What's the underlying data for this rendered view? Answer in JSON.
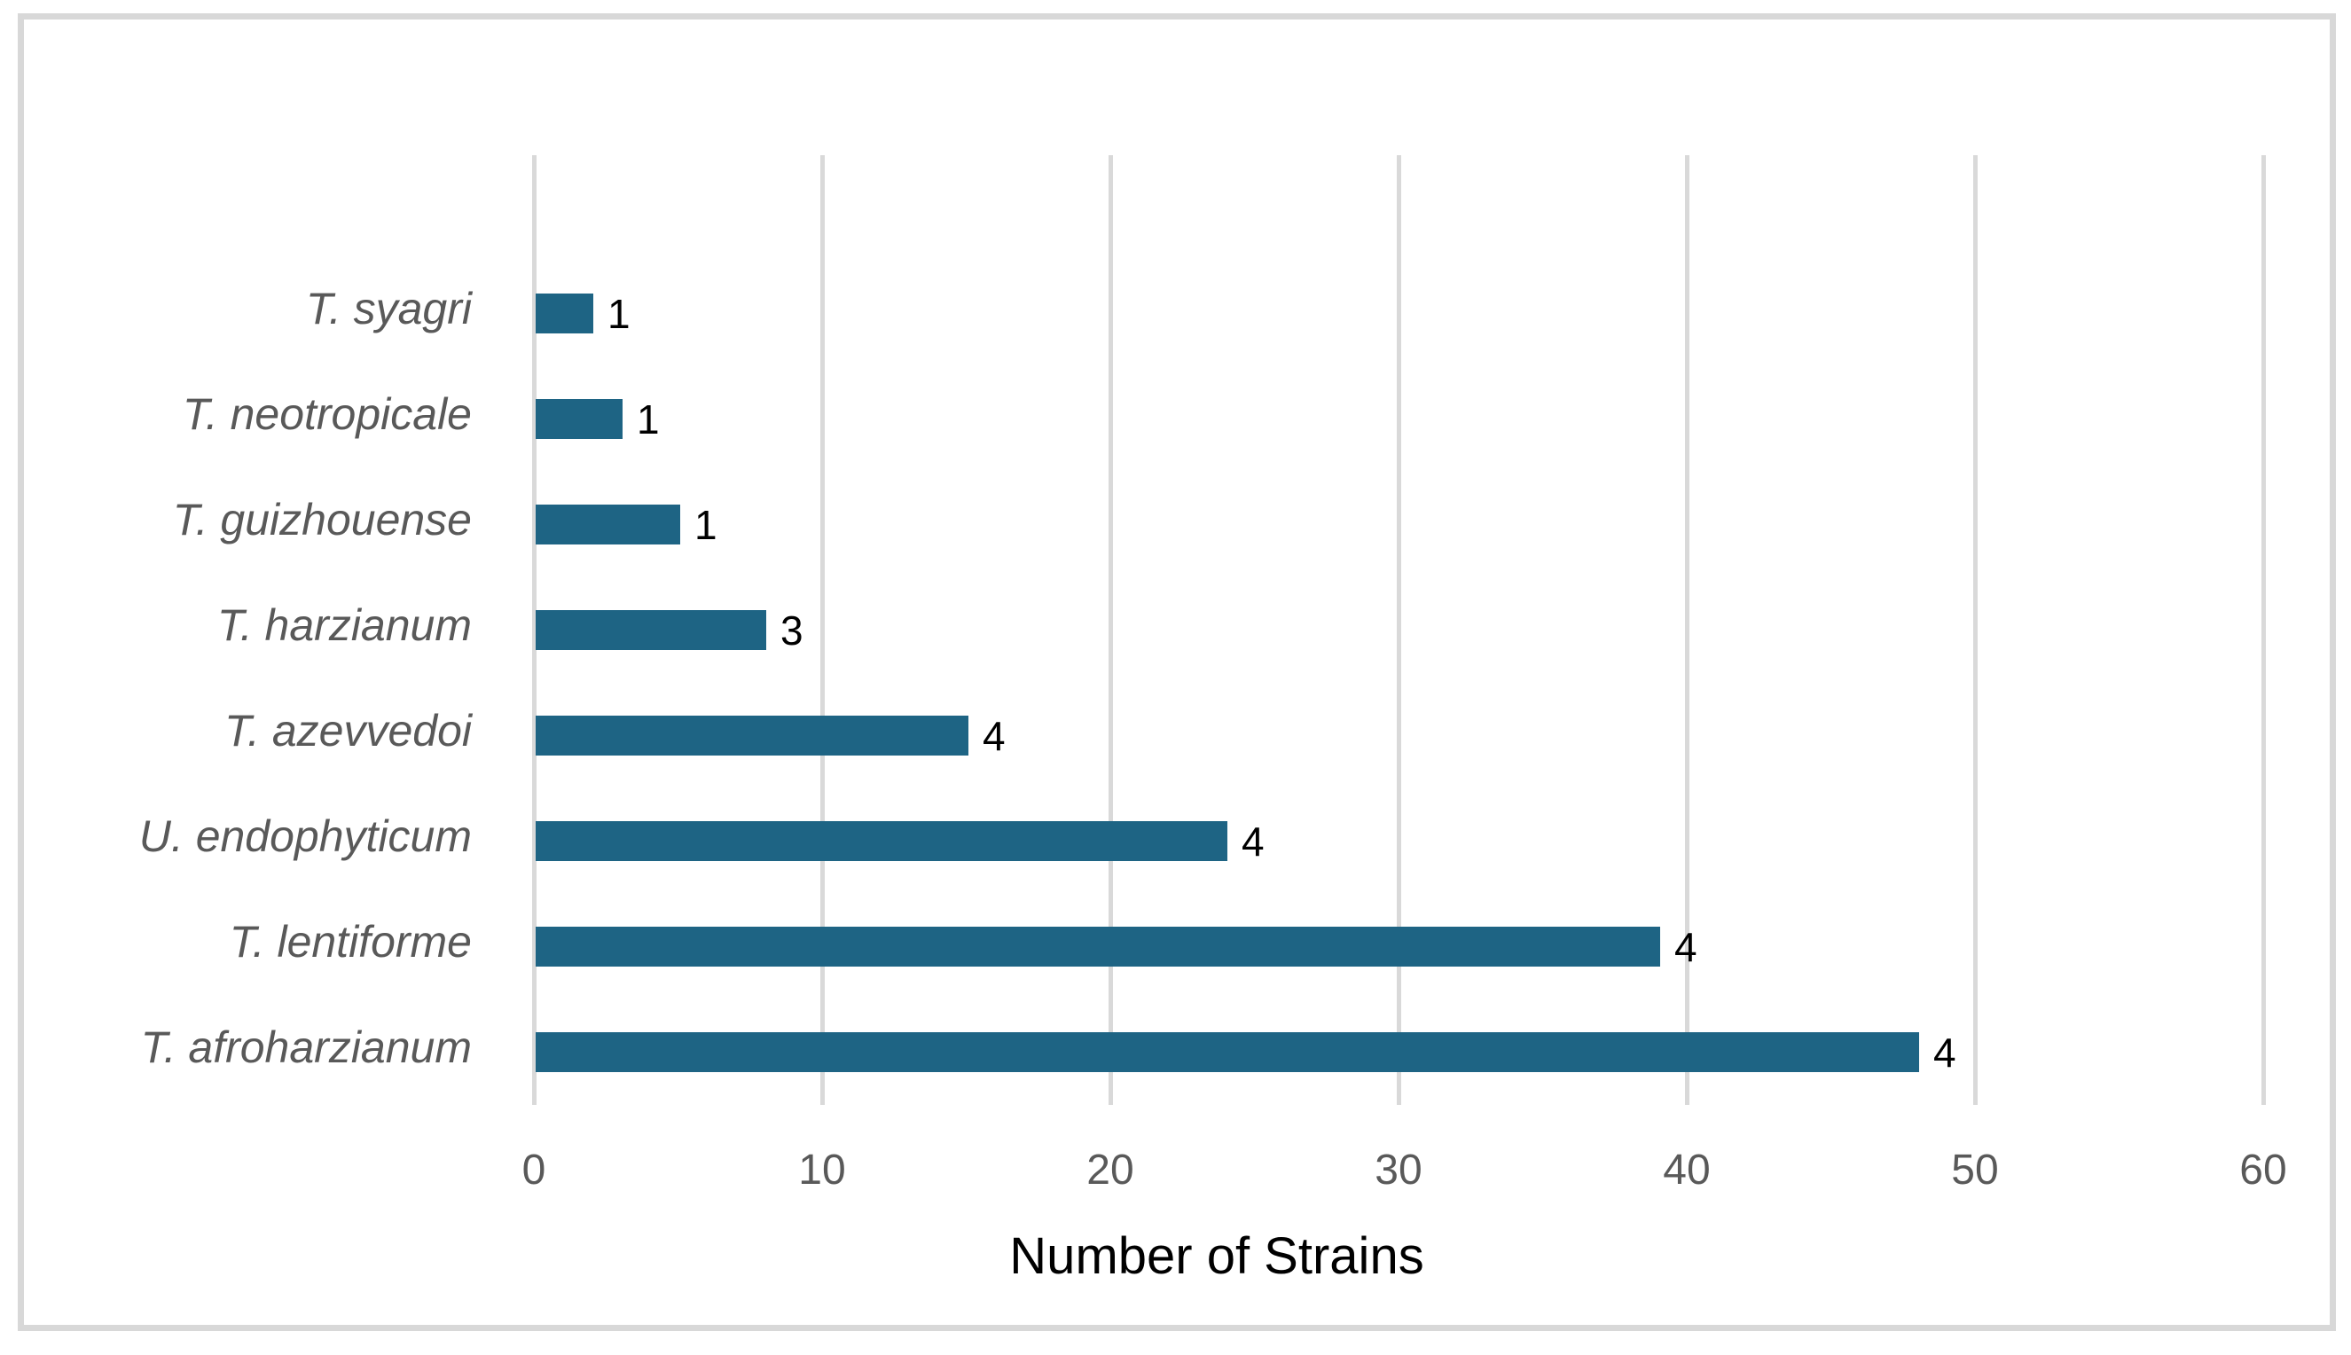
{
  "figure": {
    "background_color": "#ffffff",
    "frame_border_color": "#d8d8d8"
  },
  "chart_data": {
    "type": "bar",
    "orientation": "horizontal",
    "title": "",
    "xlabel": "Number of Strains",
    "ylabel": "",
    "categories": [
      "T. syagri",
      "T. neotropicale",
      "T. guizhouense",
      "T. harzianum",
      "T. azevvedoi",
      "U. endophyticum",
      "T. lentiforme",
      "T. afroharzianum"
    ],
    "values": [
      2,
      3,
      5,
      8,
      15,
      24,
      39,
      48
    ],
    "bar_labels": [
      "1",
      "1",
      "1",
      "3",
      "4",
      "4",
      "4",
      "4"
    ],
    "x_ticks": [
      "0",
      "10",
      "20",
      "30",
      "40",
      "50",
      "60"
    ],
    "x_tick_values": [
      0,
      10,
      20,
      30,
      40,
      50,
      60
    ],
    "xlim": [
      0,
      60
    ],
    "grid": "vertical-gridlines-only",
    "legend": "none",
    "bar_color": "#1e6484",
    "gridline_color": "#d9d9d9",
    "tick_label_color": "#595959",
    "category_label_color": "#595959",
    "data_label_color": "#000000"
  }
}
